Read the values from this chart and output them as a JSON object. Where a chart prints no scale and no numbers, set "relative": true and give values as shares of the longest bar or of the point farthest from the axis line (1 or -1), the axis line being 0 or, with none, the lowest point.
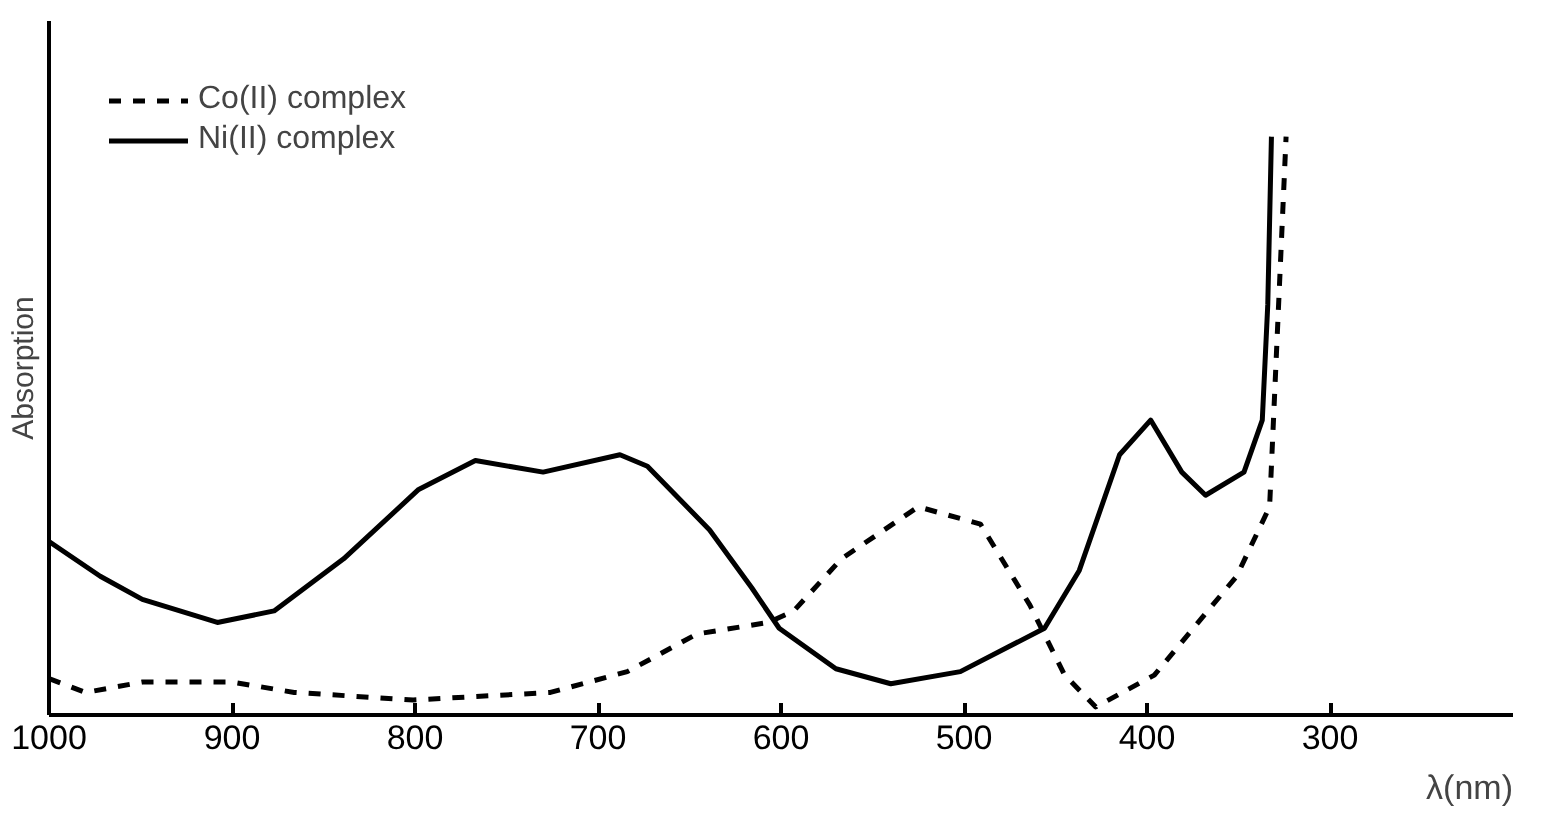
{
  "chart_data": {
    "type": "line",
    "relative": true,
    "ylabel": "Absorption",
    "xlabel": "λ(nm)",
    "xlim": [
      1000,
      200
    ],
    "xticks": [
      1000,
      900,
      800,
      700,
      600,
      500,
      400,
      300
    ],
    "legend": "top left",
    "grid": false,
    "tick_labels": "x",
    "series": [
      {
        "name": "Co(II) complex",
        "color": "#000000",
        "line_style": "dashed",
        "x": [
          1000,
          980,
          949,
          900,
          866,
          801,
          726,
          684,
          646,
          607,
          593,
          567,
          525,
          491,
          464,
          445,
          428,
          396,
          351,
          333,
          324
        ],
        "values": [
          0.063,
          0.039,
          0.057,
          0.057,
          0.039,
          0.026,
          0.039,
          0.075,
          0.14,
          0.16,
          0.18,
          0.27,
          0.36,
          0.33,
          0.19,
          0.069,
          0.014,
          0.069,
          0.24,
          0.36,
          1.0
        ]
      },
      {
        "name": "Ni(II) complex",
        "color": "#000000",
        "line_style": "solid",
        "x": [
          1000,
          972,
          949,
          908,
          877,
          839,
          798,
          767,
          730,
          688,
          673,
          639,
          616,
          601,
          570,
          540,
          502,
          456,
          437,
          415,
          398,
          381,
          368,
          347,
          337,
          334,
          332
        ],
        "values": [
          0.3,
          0.24,
          0.2,
          0.16,
          0.18,
          0.27,
          0.39,
          0.44,
          0.42,
          0.45,
          0.43,
          0.32,
          0.22,
          0.15,
          0.08,
          0.054,
          0.075,
          0.15,
          0.25,
          0.45,
          0.51,
          0.42,
          0.38,
          0.42,
          0.51,
          0.71,
          1.0
        ]
      }
    ]
  }
}
